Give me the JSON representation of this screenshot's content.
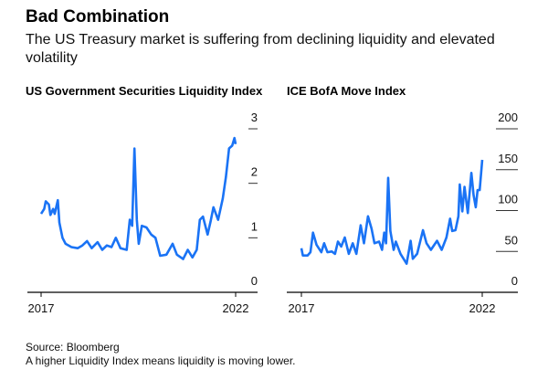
{
  "header": {
    "title": "Bad Combination",
    "subtitle": "The US Treasury market is suffering from declining liquidity and elevated volatility"
  },
  "footer": {
    "source": "Source: Bloomberg",
    "note": "A higher Liquidity Index means liquidity is moving lower."
  },
  "colors": {
    "line": "#1a73f5",
    "axis": "#000000",
    "tick": "#333333"
  },
  "chart_data": [
    {
      "type": "line",
      "title": "US Government Securities Liquidity Index",
      "xlabel": "",
      "ylabel": "",
      "xlim": [
        2017,
        2022
      ],
      "ylim": [
        0,
        3
      ],
      "x_ticks": [
        2017,
        2022
      ],
      "x_tick_labels": [
        "2017",
        "2022"
      ],
      "y_ticks": [
        0,
        1,
        2,
        3
      ],
      "y_tick_labels": [
        "0",
        "1",
        "2",
        "3"
      ],
      "grid": false,
      "y_axis_side": "right",
      "series": [
        {
          "name": "Liquidity Index",
          "x": [
            2017.0,
            2017.08,
            2017.12,
            2017.2,
            2017.24,
            2017.31,
            2017.35,
            2017.43,
            2017.47,
            2017.55,
            2017.63,
            2017.78,
            2017.94,
            2018.06,
            2018.18,
            2018.3,
            2018.45,
            2018.57,
            2018.69,
            2018.81,
            2018.92,
            2019.04,
            2019.2,
            2019.28,
            2019.34,
            2019.4,
            2019.46,
            2019.51,
            2019.59,
            2019.71,
            2019.83,
            2019.94,
            2020.06,
            2020.22,
            2020.38,
            2020.49,
            2020.65,
            2020.77,
            2020.89,
            2021.0,
            2021.08,
            2021.16,
            2021.28,
            2021.36,
            2021.43,
            2021.55,
            2021.67,
            2021.75,
            2021.83,
            2021.91,
            2021.97,
            2022.0
          ],
          "y": [
            1.44,
            1.53,
            1.67,
            1.61,
            1.42,
            1.53,
            1.44,
            1.69,
            1.28,
            1.0,
            0.89,
            0.83,
            0.81,
            0.86,
            0.94,
            0.81,
            0.92,
            0.78,
            0.86,
            0.83,
            1.0,
            0.81,
            0.78,
            1.33,
            1.22,
            2.64,
            1.33,
            0.89,
            1.22,
            1.19,
            1.06,
            1.0,
            0.67,
            0.69,
            0.89,
            0.69,
            0.61,
            0.78,
            0.64,
            0.78,
            1.33,
            1.39,
            1.06,
            1.31,
            1.56,
            1.33,
            1.72,
            2.11,
            2.64,
            2.69,
            2.83,
            2.72
          ]
        }
      ]
    },
    {
      "type": "line",
      "title": "ICE BofA Move Index",
      "xlabel": "",
      "ylabel": "",
      "xlim": [
        2017,
        2022
      ],
      "ylim": [
        0,
        200
      ],
      "x_ticks": [
        2017,
        2022
      ],
      "x_tick_labels": [
        "2017",
        "2022"
      ],
      "y_ticks": [
        0,
        50,
        100,
        150,
        200
      ],
      "y_tick_labels": [
        "0",
        "50",
        "100",
        "150",
        "200"
      ],
      "grid": false,
      "y_axis_side": "right",
      "series": [
        {
          "name": "MOVE Index",
          "x": [
            2017.0,
            2017.04,
            2017.17,
            2017.25,
            2017.32,
            2017.42,
            2017.55,
            2017.63,
            2017.72,
            2017.84,
            2017.93,
            2018.01,
            2018.1,
            2018.2,
            2018.31,
            2018.42,
            2018.52,
            2018.64,
            2018.73,
            2018.84,
            2018.94,
            2019.02,
            2019.15,
            2019.23,
            2019.29,
            2019.34,
            2019.4,
            2019.46,
            2019.55,
            2019.61,
            2019.74,
            2019.91,
            2020.02,
            2020.08,
            2020.2,
            2020.36,
            2020.46,
            2020.58,
            2020.75,
            2020.88,
            2021.01,
            2021.11,
            2021.17,
            2021.26,
            2021.34,
            2021.38,
            2021.45,
            2021.51,
            2021.6,
            2021.7,
            2021.76,
            2021.82,
            2021.87,
            2021.93,
            2022.0
          ],
          "y": [
            54,
            45,
            45,
            49,
            73,
            58,
            49,
            60,
            49,
            50,
            47,
            62,
            56,
            67,
            47,
            60,
            47,
            82,
            60,
            93,
            78,
            60,
            62,
            52,
            73,
            60,
            140,
            75,
            52,
            62,
            47,
            35,
            63,
            41,
            47,
            76,
            60,
            52,
            63,
            52,
            67,
            90,
            75,
            76,
            93,
            132,
            99,
            129,
            97,
            146,
            119,
            104,
            125,
            125,
            162
          ]
        }
      ]
    }
  ]
}
